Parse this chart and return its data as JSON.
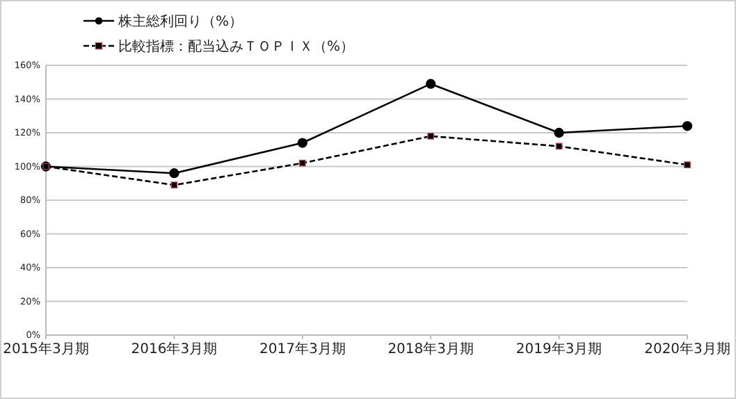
{
  "chart_data": {
    "type": "line",
    "categories": [
      "2015年3月期",
      "2016年3月期",
      "2017年3月期",
      "2018年3月期",
      "2019年3月期",
      "2020年3月期"
    ],
    "series": [
      {
        "name": "株主総利回り（%）",
        "color": "#000000",
        "marker": "circle",
        "line_style": "solid",
        "values": [
          100,
          96,
          114,
          149,
          120,
          124
        ]
      },
      {
        "name": "比較指標：配当込みＴＯＰＩＸ（%）",
        "color": "#000000",
        "marker": "square",
        "line_style": "dashed",
        "values": [
          100,
          89,
          102,
          118,
          112,
          101
        ]
      }
    ],
    "ylim": [
      0,
      160
    ],
    "yticks": [
      {
        "value": 0,
        "label": "0%"
      },
      {
        "value": 20,
        "label": "20%"
      },
      {
        "value": 40,
        "label": "40%"
      },
      {
        "value": 60,
        "label": "60%"
      },
      {
        "value": 80,
        "label": "80%"
      },
      {
        "value": 100,
        "label": "100%"
      },
      {
        "value": 120,
        "label": "120%"
      },
      {
        "value": 140,
        "label": "140%"
      },
      {
        "value": 160,
        "label": "160%"
      }
    ],
    "grid": "y",
    "legend": "top left"
  }
}
